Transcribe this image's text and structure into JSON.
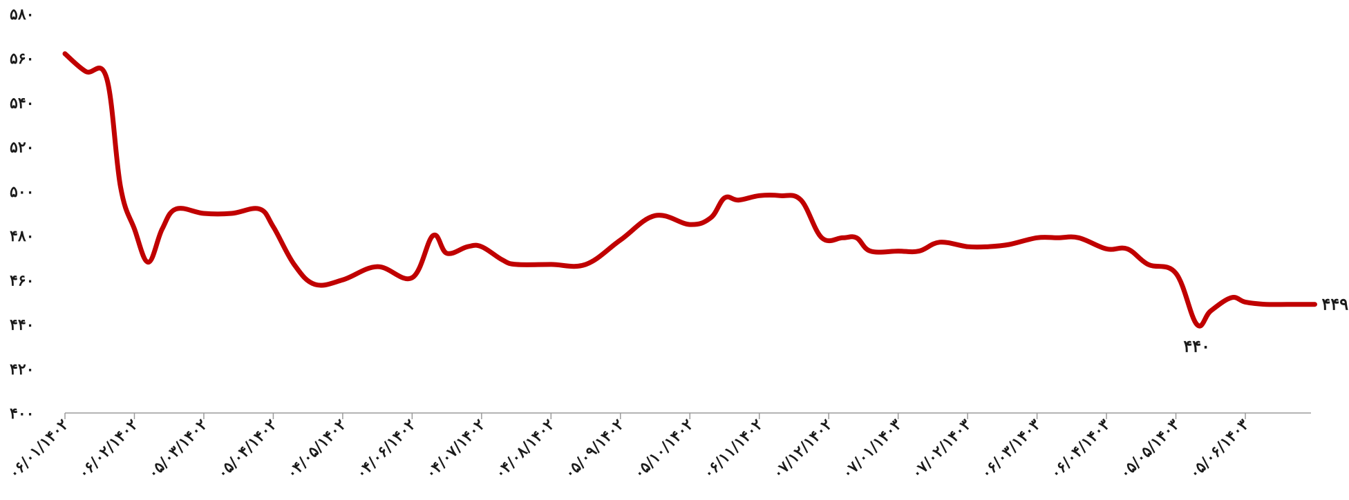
{
  "chart_data": {
    "type": "line",
    "title": "",
    "xlabel": "",
    "ylabel": "",
    "ylim": [
      400,
      580
    ],
    "yticks": [
      "۴۰۰",
      "۴۲۰",
      "۴۴۰",
      "۴۶۰",
      "۴۸۰",
      "۵۰۰",
      "۵۲۰",
      "۵۴۰",
      "۵۶۰",
      "۵۸۰"
    ],
    "ytick_values": [
      400,
      420,
      440,
      460,
      480,
      500,
      520,
      540,
      560,
      580
    ],
    "xticks": [
      "۰۶/۰۱/۱۴۰۲",
      "۰۶/۰۲/۱۴۰۲",
      "۰۵/۰۳/۱۴۰۲",
      "۰۵/۰۴/۱۴۰۲",
      "۰۴/۰۵/۱۴۰۲",
      "۰۴/۰۶/۱۴۰۲",
      "۰۴/۰۷/۱۴۰۲",
      "۰۴/۰۸/۱۴۰۲",
      "۰۵/۰۹/۱۴۰۲",
      "۰۵/۱۰/۱۴۰۲",
      "۰۶/۱۱/۱۴۰۲",
      "۰۷/۱۲/۱۴۰۲",
      "۰۷/۰۱/۱۴۰۳",
      "۰۷/۰۲/۱۴۰۳",
      "۰۶/۰۳/۱۴۰۳",
      "۰۶/۰۴/۱۴۰۳",
      "۰۵/۰۵/۱۴۰۳",
      "۰۵/۰۶/۱۴۰۳"
    ],
    "grid": false,
    "legend": "none",
    "line_color": "#c00000",
    "x": [
      0,
      0.3,
      0.6,
      0.8,
      1.0,
      1.2,
      1.4,
      1.6,
      2.0,
      2.4,
      2.8,
      3.0,
      3.3,
      3.6,
      4.0,
      4.5,
      5.0,
      5.3,
      5.5,
      5.8,
      6.0,
      6.3,
      6.5,
      7.0,
      7.5,
      8.0,
      8.5,
      9.0,
      9.3,
      9.5,
      9.7,
      10.0,
      10.3,
      10.6,
      10.9,
      11.2,
      11.4,
      11.6,
      12.0,
      12.3,
      12.6,
      13.0,
      13.3,
      13.6,
      14.0,
      14.3,
      14.6,
      15.0,
      15.3,
      15.6,
      16.0,
      16.3,
      16.5,
      16.8,
      17.0,
      17.3,
      17.6,
      18.0
    ],
    "values": [
      562,
      554,
      551,
      502,
      483,
      468,
      483,
      492,
      490,
      490,
      492,
      484,
      467,
      458,
      460,
      466,
      461,
      480,
      472,
      475,
      475,
      469,
      467,
      467,
      467,
      478,
      489,
      485,
      488,
      497,
      496,
      498,
      498,
      496,
      479,
      479,
      479,
      473,
      473,
      473,
      477,
      475,
      475,
      476,
      479,
      479,
      479,
      474,
      474,
      467,
      463,
      440,
      446,
      452,
      450,
      449,
      449,
      449
    ],
    "annotations": [
      {
        "text": "۴۴۰",
        "x": 16.3,
        "value": 440,
        "position": "below"
      },
      {
        "text": "۴۴۹",
        "x": 18.0,
        "value": 449,
        "position": "right"
      }
    ]
  }
}
